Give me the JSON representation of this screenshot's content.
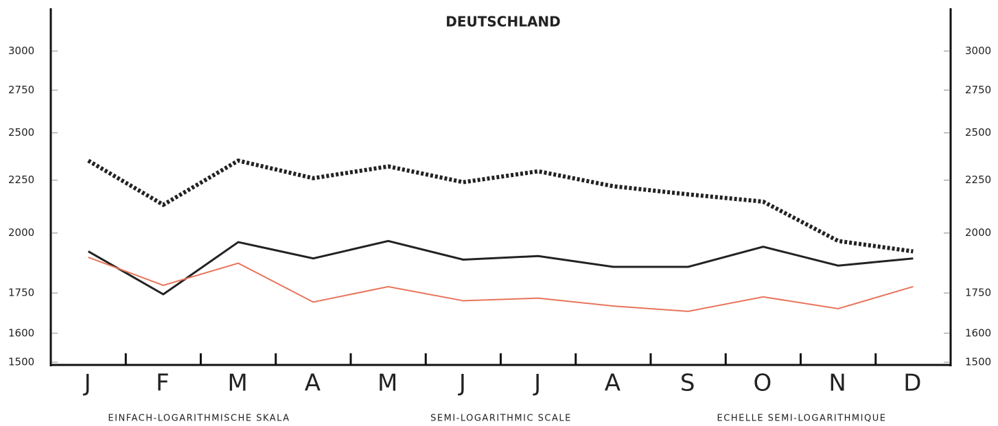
{
  "chart_data": {
    "type": "line",
    "title": "DEUTSCHLAND",
    "annotations": [
      "EINFACH-LOGARITHMISCHE SKALA",
      "SEMI-LOGARITHMIC SCALE",
      "ECHELLE SEMI-LOGARITHMIQUE"
    ],
    "categories": [
      "J",
      "F",
      "M",
      "A",
      "M",
      "J",
      "J",
      "A",
      "S",
      "O",
      "N",
      "D"
    ],
    "series": [
      {
        "color": "#222222",
        "line_style": "dotted",
        "values": [
          2350,
          2130,
          2350,
          2260,
          2320,
          2240,
          2295,
          2220,
          2180,
          2145,
          1965,
          1920
        ]
      },
      {
        "color": "#222222",
        "line_style": "solid",
        "values": [
          1920,
          1745,
          1960,
          1890,
          1965,
          1885,
          1900,
          1855,
          1855,
          1940,
          1860,
          1890
        ]
      },
      {
        "color": "#e8735a",
        "line_style": "solid",
        "values": [
          1895,
          1780,
          1870,
          1715,
          1775,
          1720,
          1730,
          1700,
          1680,
          1735,
          1690,
          1775
        ]
      }
    ],
    "log_scale": true,
    "ylim": [
      1500,
      3300
    ],
    "yticks": [
      1500,
      1600,
      1750,
      2000,
      2250,
      2500,
      2750,
      3000
    ],
    "y2lim": [
      1500,
      3300
    ],
    "y2ticks": [
      1500,
      1600,
      1750,
      2000,
      2250,
      2500,
      2750,
      3000
    ]
  }
}
